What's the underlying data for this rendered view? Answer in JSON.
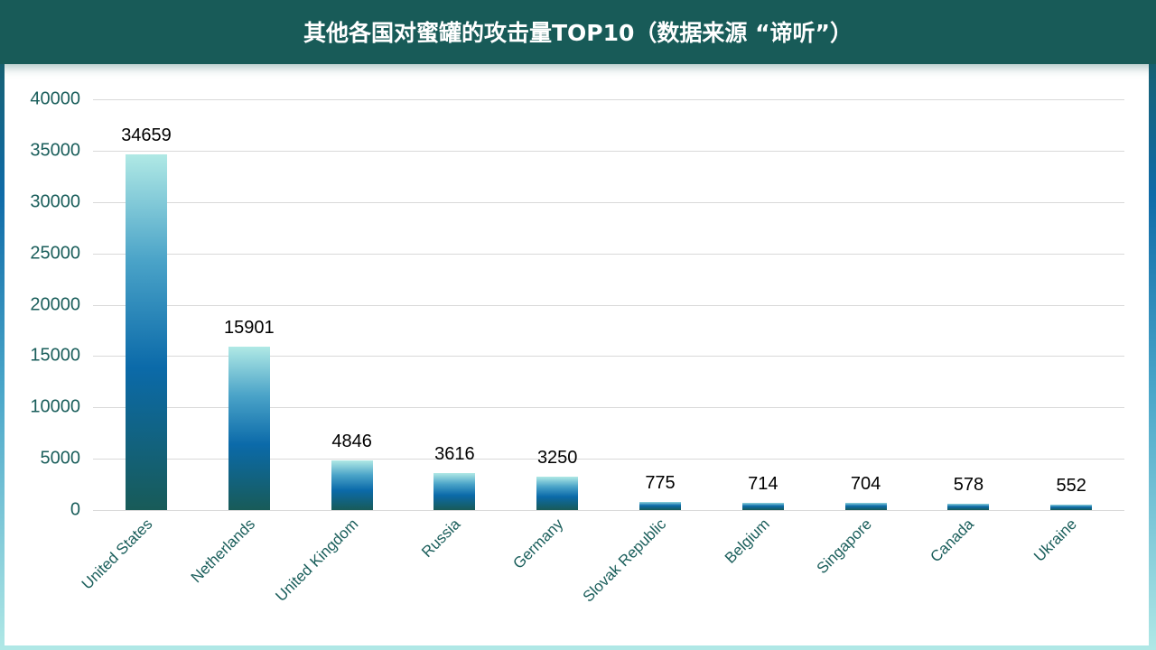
{
  "header": {
    "title": "其他各国对蜜罐的攻击量TOP10（数据来源 “谛听”）"
  },
  "colors": {
    "header_bg": "#185b58",
    "axis_text": "#1a5e5b",
    "bar_top": "#b0e9e5",
    "bar_mid": "#0b6aa9",
    "bar_bottom": "#185b58",
    "gridline": "#d9d9d9"
  },
  "chart_data": {
    "type": "bar",
    "title": "其他各国对蜜罐的攻击量TOP10（数据来源 “谛听”）",
    "xlabel": "",
    "ylabel": "",
    "categories": [
      "United States",
      "Netherlands",
      "United Kingdom",
      "Russia",
      "Germany",
      "Slovak Republic",
      "Belgium",
      "Singapore",
      "Canada",
      "Ukraine"
    ],
    "values": [
      34659,
      15901,
      4846,
      3616,
      3250,
      775,
      714,
      704,
      578,
      552
    ],
    "data_labels": [
      "34659",
      "15901",
      "4846",
      "3616",
      "3250",
      "775",
      "714",
      "704",
      "578",
      "552"
    ],
    "ylim": [
      0,
      40000
    ],
    "yticks": [
      "0",
      "5000",
      "10000",
      "15000",
      "20000",
      "25000",
      "30000",
      "35000",
      "40000"
    ],
    "grid": true,
    "legend": "none"
  }
}
